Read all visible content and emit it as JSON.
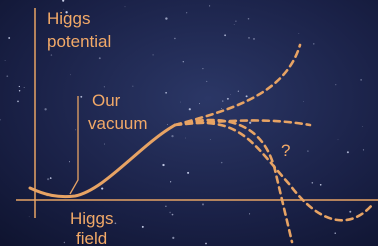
{
  "y_axis_label": [
    "Higgs",
    "potential"
  ],
  "vacuum_label": [
    "Our",
    "vacuum"
  ],
  "unknown_label": "?",
  "x_axis_label": [
    "Higgs",
    "field"
  ]
}
